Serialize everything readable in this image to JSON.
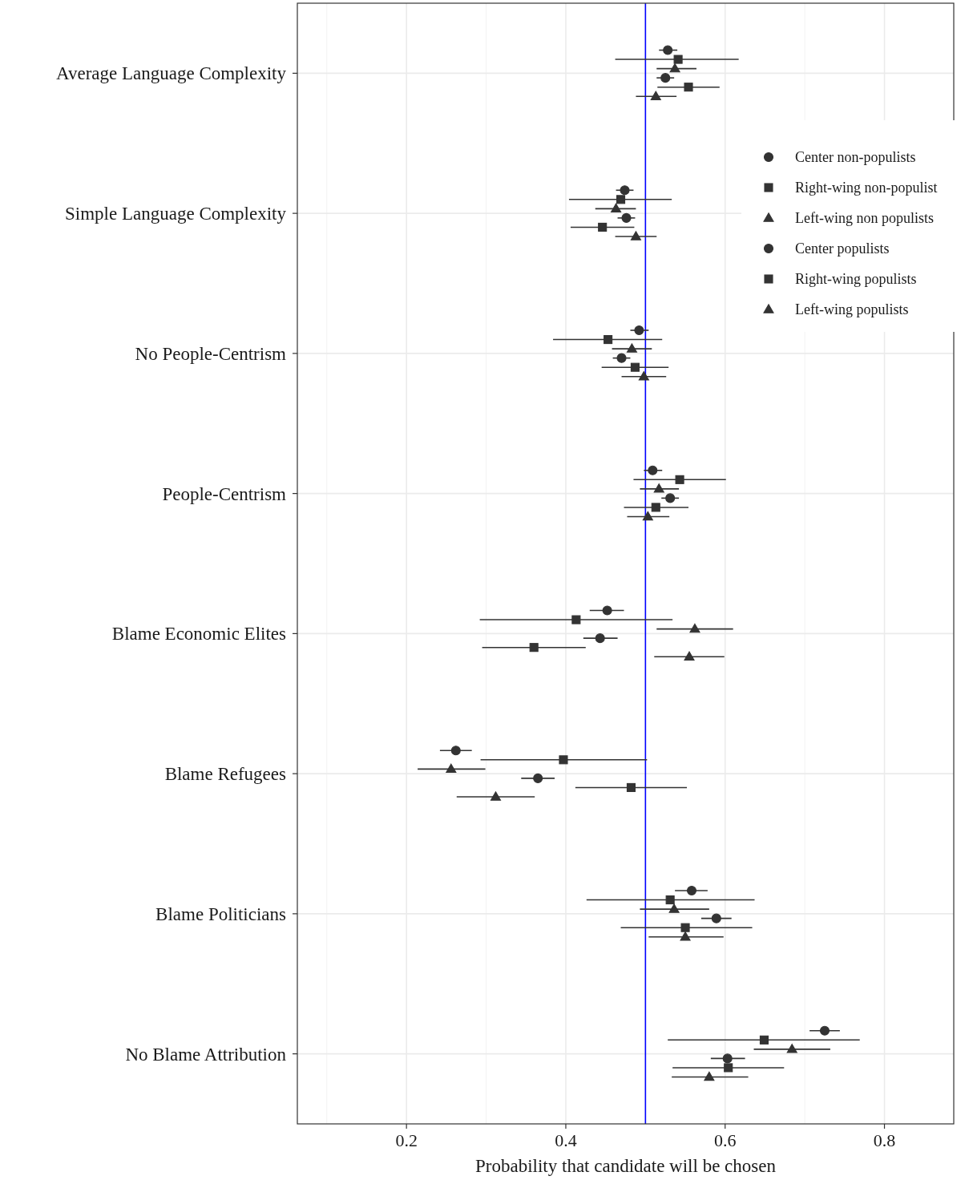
{
  "chart_data": {
    "type": "scatter",
    "orientation": "horizontal",
    "xlabel": "Probability that candidate will be chosen",
    "categories": [
      "Average Language Complexity",
      "Simple Language Complexity",
      "No People-Centrism",
      "People-Centrism",
      "Blame Economic Elites",
      "Blame Refugees",
      "Blame Politicians",
      "No Blame Attribution"
    ],
    "xlim": [
      0.063,
      0.887
    ],
    "xticks": [
      {
        "value": 0.2,
        "label": "0.2"
      },
      {
        "value": 0.4,
        "label": "0.4"
      },
      {
        "value": 0.6,
        "label": "0.6"
      },
      {
        "value": 0.8,
        "label": "0.8"
      }
    ],
    "grid": true,
    "legend": "right",
    "ref_lines": [
      {
        "axis": "x",
        "value": 0.5,
        "color": "#0000ff",
        "line_style": "solid"
      }
    ],
    "series": [
      {
        "name": "Center non-populists",
        "color": "#333333",
        "marker": "circle",
        "values": [
          0.528,
          0.474,
          0.492,
          0.509,
          0.452,
          0.262,
          0.558,
          0.725
        ],
        "errors": [
          [
            0.517,
            0.54
          ],
          [
            0.463,
            0.485
          ],
          [
            0.481,
            0.504
          ],
          [
            0.498,
            0.521
          ],
          [
            0.43,
            0.473
          ],
          [
            0.242,
            0.282
          ],
          [
            0.537,
            0.578
          ],
          [
            0.706,
            0.744
          ]
        ]
      },
      {
        "name": "Right-wing non-populist",
        "color": "#333333",
        "marker": "square",
        "values": [
          0.541,
          0.469,
          0.453,
          0.543,
          0.413,
          0.397,
          0.531,
          0.649
        ],
        "errors": [
          [
            0.462,
            0.617
          ],
          [
            0.404,
            0.533
          ],
          [
            0.384,
            0.521
          ],
          [
            0.485,
            0.601
          ],
          [
            0.292,
            0.534
          ],
          [
            0.293,
            0.502
          ],
          [
            0.426,
            0.637
          ],
          [
            0.528,
            0.769
          ]
        ]
      },
      {
        "name": "Left-wing non populists",
        "color": "#333333",
        "marker": "triangle",
        "values": [
          0.537,
          0.463,
          0.483,
          0.517,
          0.562,
          0.256,
          0.536,
          0.684
        ],
        "errors": [
          [
            0.514,
            0.564
          ],
          [
            0.437,
            0.488
          ],
          [
            0.458,
            0.508
          ],
          [
            0.493,
            0.542
          ],
          [
            0.514,
            0.61
          ],
          [
            0.214,
            0.299
          ],
          [
            0.493,
            0.58
          ],
          [
            0.636,
            0.732
          ]
        ]
      },
      {
        "name": "Center populists",
        "color": "#333333",
        "marker": "circle",
        "values": [
          0.525,
          0.476,
          0.47,
          0.531,
          0.443,
          0.365,
          0.589,
          0.603
        ],
        "errors": [
          [
            0.514,
            0.536
          ],
          [
            0.465,
            0.487
          ],
          [
            0.459,
            0.481
          ],
          [
            0.52,
            0.542
          ],
          [
            0.422,
            0.465
          ],
          [
            0.344,
            0.386
          ],
          [
            0.57,
            0.608
          ],
          [
            0.582,
            0.625
          ]
        ]
      },
      {
        "name": "Right-wing populists",
        "color": "#333333",
        "marker": "square",
        "values": [
          0.554,
          0.446,
          0.487,
          0.513,
          0.36,
          0.482,
          0.55,
          0.604
        ],
        "errors": [
          [
            0.515,
            0.593
          ],
          [
            0.406,
            0.486
          ],
          [
            0.445,
            0.529
          ],
          [
            0.473,
            0.554
          ],
          [
            0.295,
            0.425
          ],
          [
            0.412,
            0.552
          ],
          [
            0.469,
            0.634
          ],
          [
            0.534,
            0.674
          ]
        ]
      },
      {
        "name": "Left-wing populists",
        "color": "#333333",
        "marker": "triangle",
        "values": [
          0.513,
          0.488,
          0.498,
          0.503,
          0.555,
          0.312,
          0.55,
          0.58
        ],
        "errors": [
          [
            0.488,
            0.539
          ],
          [
            0.462,
            0.514
          ],
          [
            0.47,
            0.526
          ],
          [
            0.477,
            0.53
          ],
          [
            0.511,
            0.599
          ],
          [
            0.263,
            0.361
          ],
          [
            0.504,
            0.598
          ],
          [
            0.533,
            0.629
          ]
        ]
      }
    ]
  }
}
